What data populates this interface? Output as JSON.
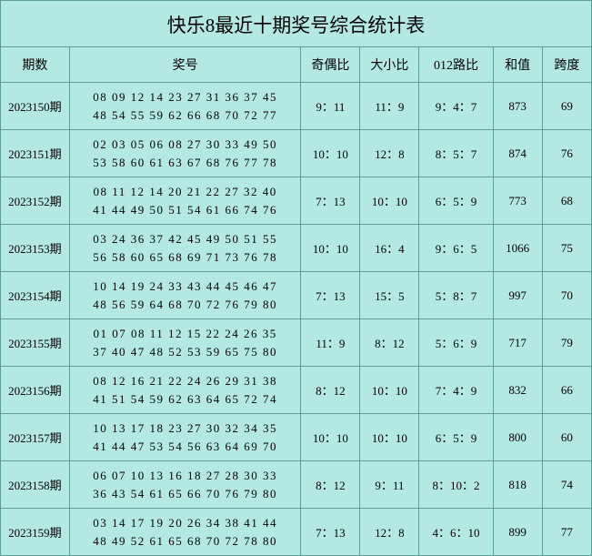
{
  "title": "快乐8最近十期奖号综合统计表",
  "columns": [
    "期数",
    "奖号",
    "奇偶比",
    "大小比",
    "012路比",
    "和值",
    "跨度"
  ],
  "rows": [
    {
      "period": "2023150期",
      "numbers_line1": "08 09 12 14 23 27 31 36 37 45",
      "numbers_line2": "48 54 55 59 62 66 68 70 72 77",
      "odd_even": "9：11",
      "big_small": "11：9",
      "route012": "9：4：7",
      "sum": "873",
      "span": "69"
    },
    {
      "period": "2023151期",
      "numbers_line1": "02 03 05 06 08 27 30 33 49 50",
      "numbers_line2": "53 58 60 61 63 67 68 76 77 78",
      "odd_even": "10：10",
      "big_small": "12：8",
      "route012": "8：5：7",
      "sum": "874",
      "span": "76"
    },
    {
      "period": "2023152期",
      "numbers_line1": "08 11 12 14 20 21 22 27 32 40",
      "numbers_line2": "41 44 49 50 51 54 61 66 74 76",
      "odd_even": "7：13",
      "big_small": "10：10",
      "route012": "6：5：9",
      "sum": "773",
      "span": "68"
    },
    {
      "period": "2023153期",
      "numbers_line1": "03 24 36 37 42 45 49 50 51 55",
      "numbers_line2": "56 58 60 65 68 69 71 73 76 78",
      "odd_even": "10：10",
      "big_small": "16：4",
      "route012": "9：6：5",
      "sum": "1066",
      "span": "75"
    },
    {
      "period": "2023154期",
      "numbers_line1": "10 14 19 24 33 43 44 45 46 47",
      "numbers_line2": "48 56 59 64 68 70 72 76 79 80",
      "odd_even": "7：13",
      "big_small": "15：5",
      "route012": "5：8：7",
      "sum": "997",
      "span": "70"
    },
    {
      "period": "2023155期",
      "numbers_line1": "01 07 08 11 12 15 22 24 26 35",
      "numbers_line2": "37 40 47 48 52 53 59 65 75 80",
      "odd_even": "11：9",
      "big_small": "8：12",
      "route012": "5：6：9",
      "sum": "717",
      "span": "79"
    },
    {
      "period": "2023156期",
      "numbers_line1": "08 12 16 21 22 24 26 29 31 38",
      "numbers_line2": "41 51 54 59 62 63 64 65 72 74",
      "odd_even": "8：12",
      "big_small": "10：10",
      "route012": "7：4：9",
      "sum": "832",
      "span": "66"
    },
    {
      "period": "2023157期",
      "numbers_line1": "10 13 17 18 23 27 30 32 34 35",
      "numbers_line2": "41 44 47 53 54 56 63 64 69 70",
      "odd_even": "10：10",
      "big_small": "10：10",
      "route012": "6：5：9",
      "sum": "800",
      "span": "60"
    },
    {
      "period": "2023158期",
      "numbers_line1": "06 07 10 13 16 18 27 28 30 33",
      "numbers_line2": "36 43 54 61 65 66 70 76 79 80",
      "odd_even": "8：12",
      "big_small": "9：11",
      "route012": "8：10：2",
      "sum": "818",
      "span": "74"
    },
    {
      "period": "2023159期",
      "numbers_line1": "03 14 17 19 20 26 34 38 41 44",
      "numbers_line2": "48 49 52 61 65 68 70 72 78 80",
      "odd_even": "7：13",
      "big_small": "12：8",
      "route012": "4：6：10",
      "sum": "899",
      "span": "77"
    }
  ]
}
